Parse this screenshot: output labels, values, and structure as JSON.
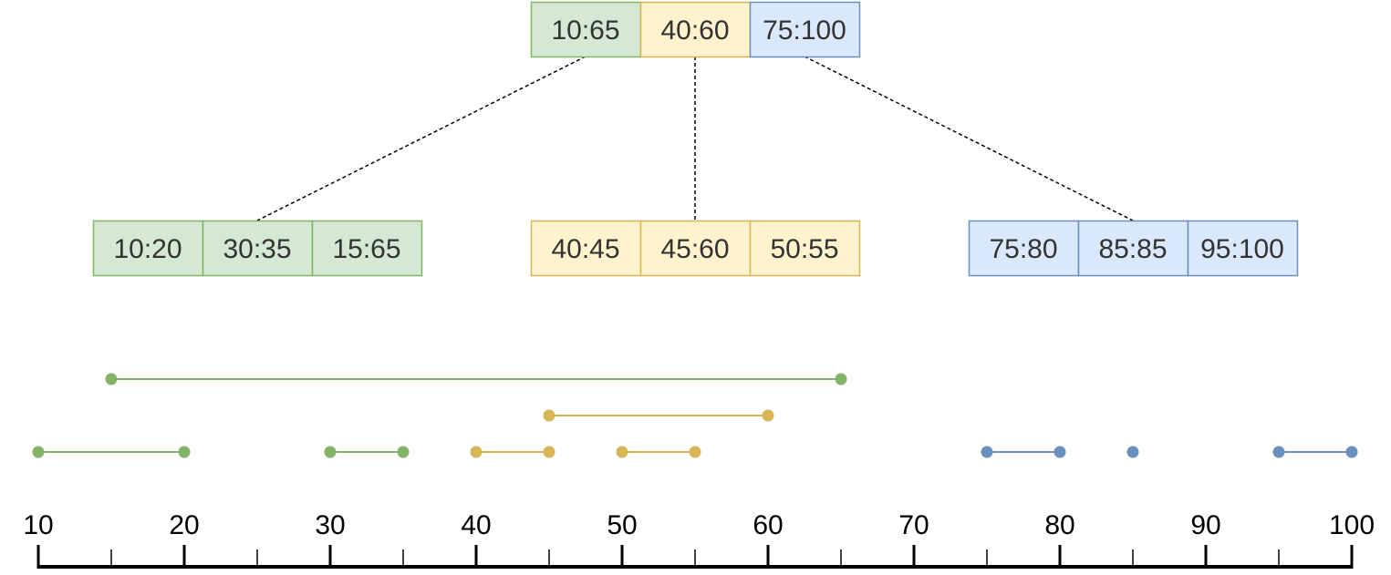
{
  "colors": {
    "green": {
      "fill": "#d5e8d4",
      "stroke": "#82b366",
      "mark": "#82b366"
    },
    "yellow": {
      "fill": "#fff2cc",
      "stroke": "#d6b656",
      "mark": "#d6b656"
    },
    "blue": {
      "fill": "#dae8fc",
      "stroke": "#6c8ebf",
      "mark": "#6c8ebf"
    },
    "text": "#333333",
    "connector": "#000000",
    "axis": "#000000"
  },
  "tree": {
    "root": {
      "cells": [
        {
          "label": "10:65",
          "color": "green"
        },
        {
          "label": "40:60",
          "color": "yellow"
        },
        {
          "label": "75:100",
          "color": "blue"
        }
      ]
    },
    "children": [
      {
        "color": "green",
        "cells": [
          {
            "label": "10:20"
          },
          {
            "label": "30:35"
          },
          {
            "label": "15:65"
          }
        ]
      },
      {
        "color": "yellow",
        "cells": [
          {
            "label": "40:45"
          },
          {
            "label": "45:60"
          },
          {
            "label": "50:55"
          }
        ]
      },
      {
        "color": "blue",
        "cells": [
          {
            "label": "75:80"
          },
          {
            "label": "85:85"
          },
          {
            "label": "95:100"
          }
        ]
      }
    ]
  },
  "intervals": [
    {
      "start": 15,
      "end": 65,
      "row": 0,
      "color": "green"
    },
    {
      "start": 45,
      "end": 60,
      "row": 1,
      "color": "yellow"
    },
    {
      "start": 10,
      "end": 20,
      "row": 2,
      "color": "green"
    },
    {
      "start": 30,
      "end": 35,
      "row": 2,
      "color": "green"
    },
    {
      "start": 40,
      "end": 45,
      "row": 2,
      "color": "yellow"
    },
    {
      "start": 50,
      "end": 55,
      "row": 2,
      "color": "yellow"
    },
    {
      "start": 75,
      "end": 80,
      "row": 2,
      "color": "blue"
    },
    {
      "start": 85,
      "end": 85,
      "row": 2,
      "color": "blue"
    },
    {
      "start": 95,
      "end": 100,
      "row": 2,
      "color": "blue"
    }
  ],
  "axis": {
    "min": 10,
    "max": 100,
    "major_ticks": [
      10,
      20,
      30,
      40,
      50,
      60,
      70,
      80,
      90,
      100
    ],
    "minor_ticks": [
      15,
      25,
      35,
      45,
      55,
      65,
      75,
      85,
      95
    ],
    "tick_labels": [
      "10",
      "20",
      "30",
      "40",
      "50",
      "60",
      "70",
      "80",
      "90",
      "100"
    ]
  }
}
